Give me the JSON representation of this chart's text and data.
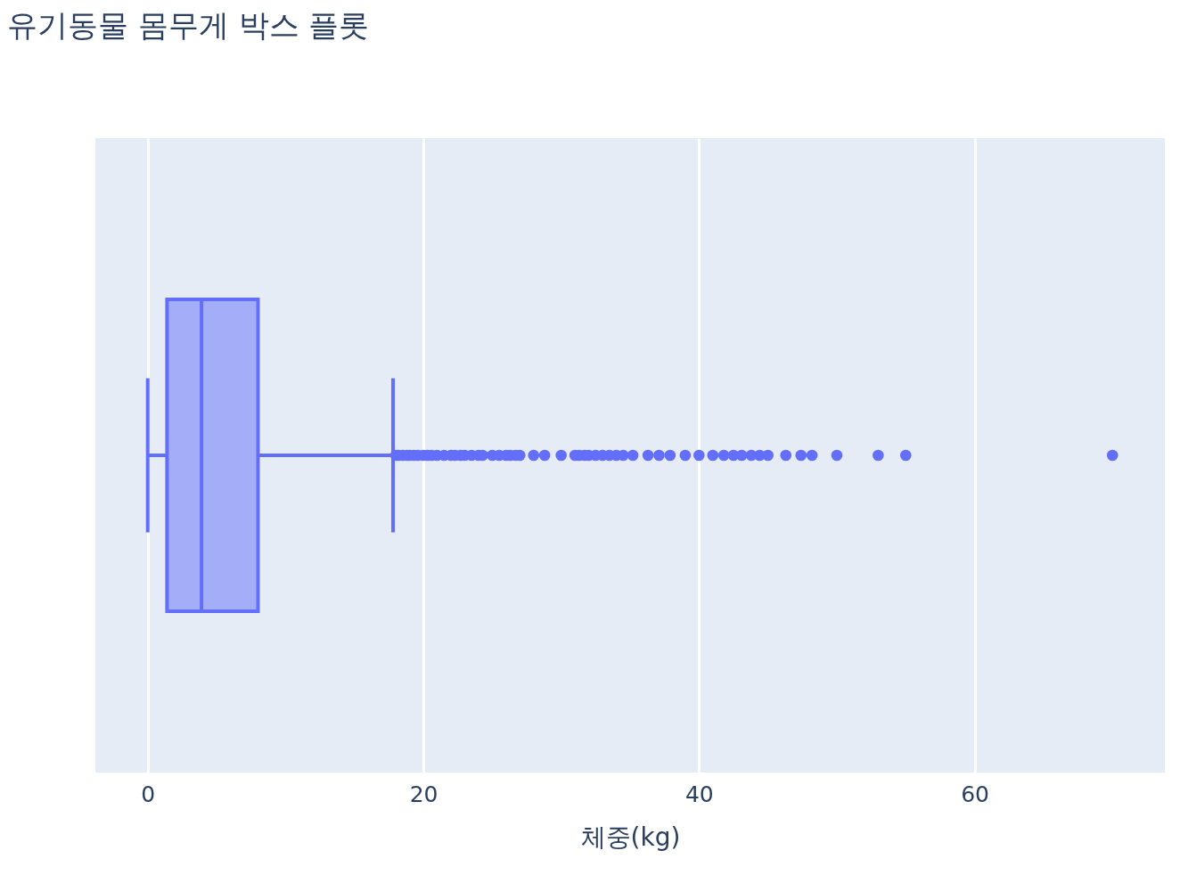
{
  "chart_data": {
    "type": "box",
    "title": "유기동물 몸무게 박스 플롯",
    "xlabel": "체중(kg)",
    "orientation": "horizontal",
    "categories": [
      null
    ],
    "series": [
      {
        "color": "#636efa",
        "boxes": [
          {
            "low": 0,
            "q1": 1.4,
            "median": 3.9,
            "q3": 8.0,
            "high": 17.8,
            "outliers": [
              18,
              18.2,
              18.5,
              18.8,
              19,
              19.3,
              19.6,
              20,
              20.3,
              20.6,
              21,
              21.5,
              22,
              22.3,
              22.7,
              23,
              23.5,
              24,
              24.3,
              25,
              25.5,
              26,
              26.3,
              26.7,
              27,
              28,
              28.8,
              30,
              31,
              31.3,
              31.7,
              32,
              32.5,
              33,
              33.5,
              34,
              34.5,
              35.2,
              36.3,
              37.1,
              37.9,
              39,
              40,
              41,
              41.8,
              42.5,
              43.1,
              43.8,
              44.4,
              45,
              46.3,
              47.4,
              48.2,
              50,
              53,
              55,
              70
            ]
          }
        ]
      }
    ],
    "xlim": [
      -3.8,
      73.8
    ],
    "xticks": [
      0,
      20,
      40,
      60
    ],
    "grid": "x",
    "tick_labels": "x",
    "marker": "circle"
  }
}
